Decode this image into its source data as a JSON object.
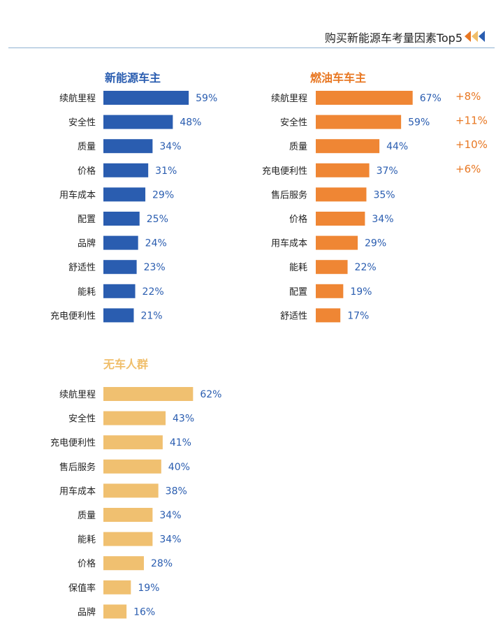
{
  "header": {
    "title": "购买新能源车考量因素Top5",
    "arrow_colors": [
      "#e87722",
      "#f0be6a",
      "#2a5db0"
    ],
    "line_color": "#8fb1d1"
  },
  "chart_data": [
    {
      "type": "bar",
      "title": "新能源车主",
      "title_color": "#2a5db0",
      "bar_color": "#2a5db0",
      "categories": [
        "续航里程",
        "安全性",
        "质量",
        "价格",
        "用车成本",
        "配置",
        "品牌",
        "舒适性",
        "能耗",
        "充电便利性"
      ],
      "values": [
        59,
        48,
        34,
        31,
        29,
        25,
        24,
        23,
        22,
        21
      ],
      "value_labels": [
        "59%",
        "48%",
        "34%",
        "31%",
        "29%",
        "25%",
        "24%",
        "23%",
        "22%",
        "21%"
      ]
    },
    {
      "type": "bar",
      "title": "燃油车车主",
      "title_color": "#e87722",
      "bar_color": "#ef8634",
      "categories": [
        "续航里程",
        "安全性",
        "质量",
        "充电便利性",
        "售后服务",
        "价格",
        "用车成本",
        "能耗",
        "配置",
        "舒适性"
      ],
      "values": [
        67,
        59,
        44,
        37,
        35,
        34,
        29,
        22,
        19,
        17
      ],
      "value_labels": [
        "67%",
        "59%",
        "44%",
        "37%",
        "35%",
        "34%",
        "29%",
        "22%",
        "19%",
        "17%"
      ],
      "annotations": [
        "+8%",
        "+11%",
        "+10%",
        "+6%"
      ],
      "annotation_color": "#e87722"
    },
    {
      "type": "bar",
      "title": "无车人群",
      "title_color": "#f0be6a",
      "bar_color": "#f0c070",
      "categories": [
        "续航里程",
        "安全性",
        "充电便利性",
        "售后服务",
        "用车成本",
        "质量",
        "能耗",
        "价格",
        "保值率",
        "品牌"
      ],
      "values": [
        62,
        43,
        41,
        40,
        38,
        34,
        34,
        28,
        19,
        16
      ],
      "value_labels": [
        "62%",
        "43%",
        "41%",
        "40%",
        "38%",
        "34%",
        "34%",
        "28%",
        "19%",
        "16%"
      ]
    }
  ]
}
